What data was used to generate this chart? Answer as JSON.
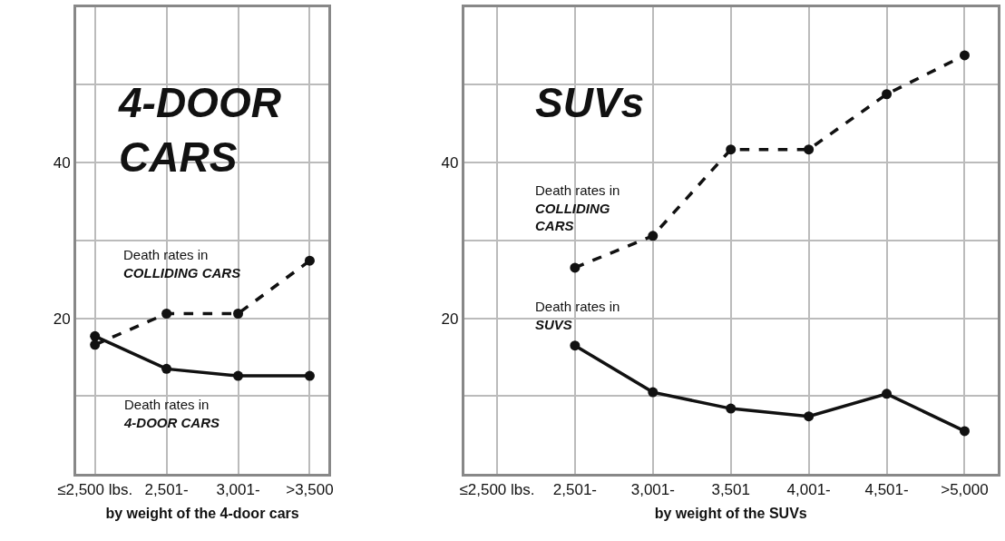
{
  "chart_data": [
    {
      "type": "line",
      "title": "4-DOOR\nCARS",
      "xlabel": "by weight of the 4-door cars",
      "categories": [
        "≤2,500 lbs.",
        "2,501-",
        "3,001-",
        ">3,500"
      ],
      "series": [
        {
          "color": "#111111",
          "line_style": "dashed",
          "values": [
            16.6,
            20.6,
            20.6,
            27.4
          ]
        },
        {
          "color": "#111111",
          "line_style": "solid",
          "values": [
            17.7,
            13.5,
            12.6,
            12.6
          ]
        }
      ],
      "ylim": [
        0,
        60
      ],
      "yticks": [
        {
          "value": 0,
          "label": null
        },
        {
          "value": 10,
          "label": null
        },
        20,
        {
          "value": 30,
          "label": null
        },
        40,
        {
          "value": 50,
          "label": null
        }
      ],
      "annotations": [
        "Death rates in\nCOLLIDING CARS",
        "Death rates in\n4-DOOR CARS"
      ],
      "grid": true,
      "marker": "circle"
    },
    {
      "type": "line",
      "title": "SUVs",
      "xlabel": "by weight of the SUVs",
      "categories": [
        "≤2,500 lbs.",
        "2,501-",
        "3,001-",
        "3,501",
        "4,001-",
        "4,501-",
        ">5,000"
      ],
      "series": [
        {
          "color": "#111111",
          "line_style": "dashed",
          "values": [
            null,
            26.5,
            30.6,
            41.7,
            41.7,
            48.8,
            53.8
          ]
        },
        {
          "color": "#111111",
          "line_style": "solid",
          "values": [
            null,
            16.5,
            10.5,
            8.4,
            7.4,
            10.3,
            5.5
          ]
        }
      ],
      "ylim": [
        0,
        60
      ],
      "yticks": [
        {
          "value": 0,
          "label": null
        },
        {
          "value": 10,
          "label": null
        },
        20,
        {
          "value": 30,
          "label": null
        },
        40,
        {
          "value": 50,
          "label": null
        }
      ],
      "annotations": [
        "Death rates in\nCOLLIDING\nCARS",
        "Death rates in\nSUVS"
      ],
      "grid": true,
      "marker": "circle"
    }
  ]
}
